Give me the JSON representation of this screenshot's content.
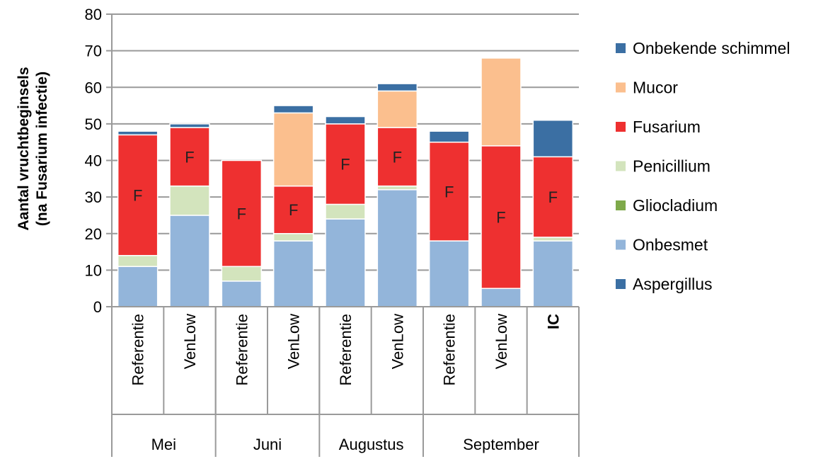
{
  "chart_data": {
    "type": "bar",
    "stacked": true,
    "title": "",
    "ylabel_lines": [
      "Aantal vruchtbeginsels",
      "(na Fusarium infectie)"
    ],
    "ylim": [
      0,
      80
    ],
    "yticks": [
      0,
      10,
      20,
      30,
      40,
      50,
      60,
      70,
      80
    ],
    "grid": true,
    "legend_position": "right",
    "categories": [
      "Referentie",
      "VenLow",
      "Referentie",
      "VenLow",
      "Referentie",
      "VenLow",
      "Referentie",
      "VenLow",
      "IC"
    ],
    "groups": [
      {
        "label": "Mei",
        "count": 2
      },
      {
        "label": "Juni",
        "count": 2
      },
      {
        "label": "Augustus",
        "count": 2
      },
      {
        "label": "September",
        "count": 3
      }
    ],
    "bar_label": "F",
    "label_series": "Fusarium",
    "series": [
      {
        "name": "Aspergillus",
        "color": "#3b6fa3",
        "values": [
          0,
          0,
          0,
          0,
          0,
          0,
          0,
          0,
          0
        ]
      },
      {
        "name": "Onbesmet",
        "color": "#93b5da",
        "values": [
          11,
          25,
          7,
          18,
          24,
          32,
          18,
          5,
          18
        ]
      },
      {
        "name": "Gliocladium",
        "color": "#7ea94a",
        "values": [
          0,
          0,
          0,
          0,
          0,
          0,
          0,
          0,
          0
        ]
      },
      {
        "name": "Penicillium",
        "color": "#d3e4bd",
        "values": [
          3,
          8,
          4,
          2,
          4,
          1,
          0,
          0,
          1
        ]
      },
      {
        "name": "Fusarium",
        "color": "#ee3030",
        "values": [
          33,
          16,
          29,
          13,
          22,
          16,
          27,
          39,
          22
        ]
      },
      {
        "name": "Mucor",
        "color": "#fbbf8e",
        "values": [
          0,
          0,
          0,
          20,
          0,
          10,
          0,
          24,
          0
        ]
      },
      {
        "name": "Onbekende schimmel",
        "color": "#3b6fa3",
        "values": [
          1,
          1,
          0,
          2,
          2,
          2,
          3,
          0,
          10
        ]
      }
    ],
    "legend_order": [
      "Onbekende schimmel",
      "Mucor",
      "Fusarium",
      "Penicillium",
      "Gliocladium",
      "Onbesmet",
      "Aspergillus"
    ]
  }
}
